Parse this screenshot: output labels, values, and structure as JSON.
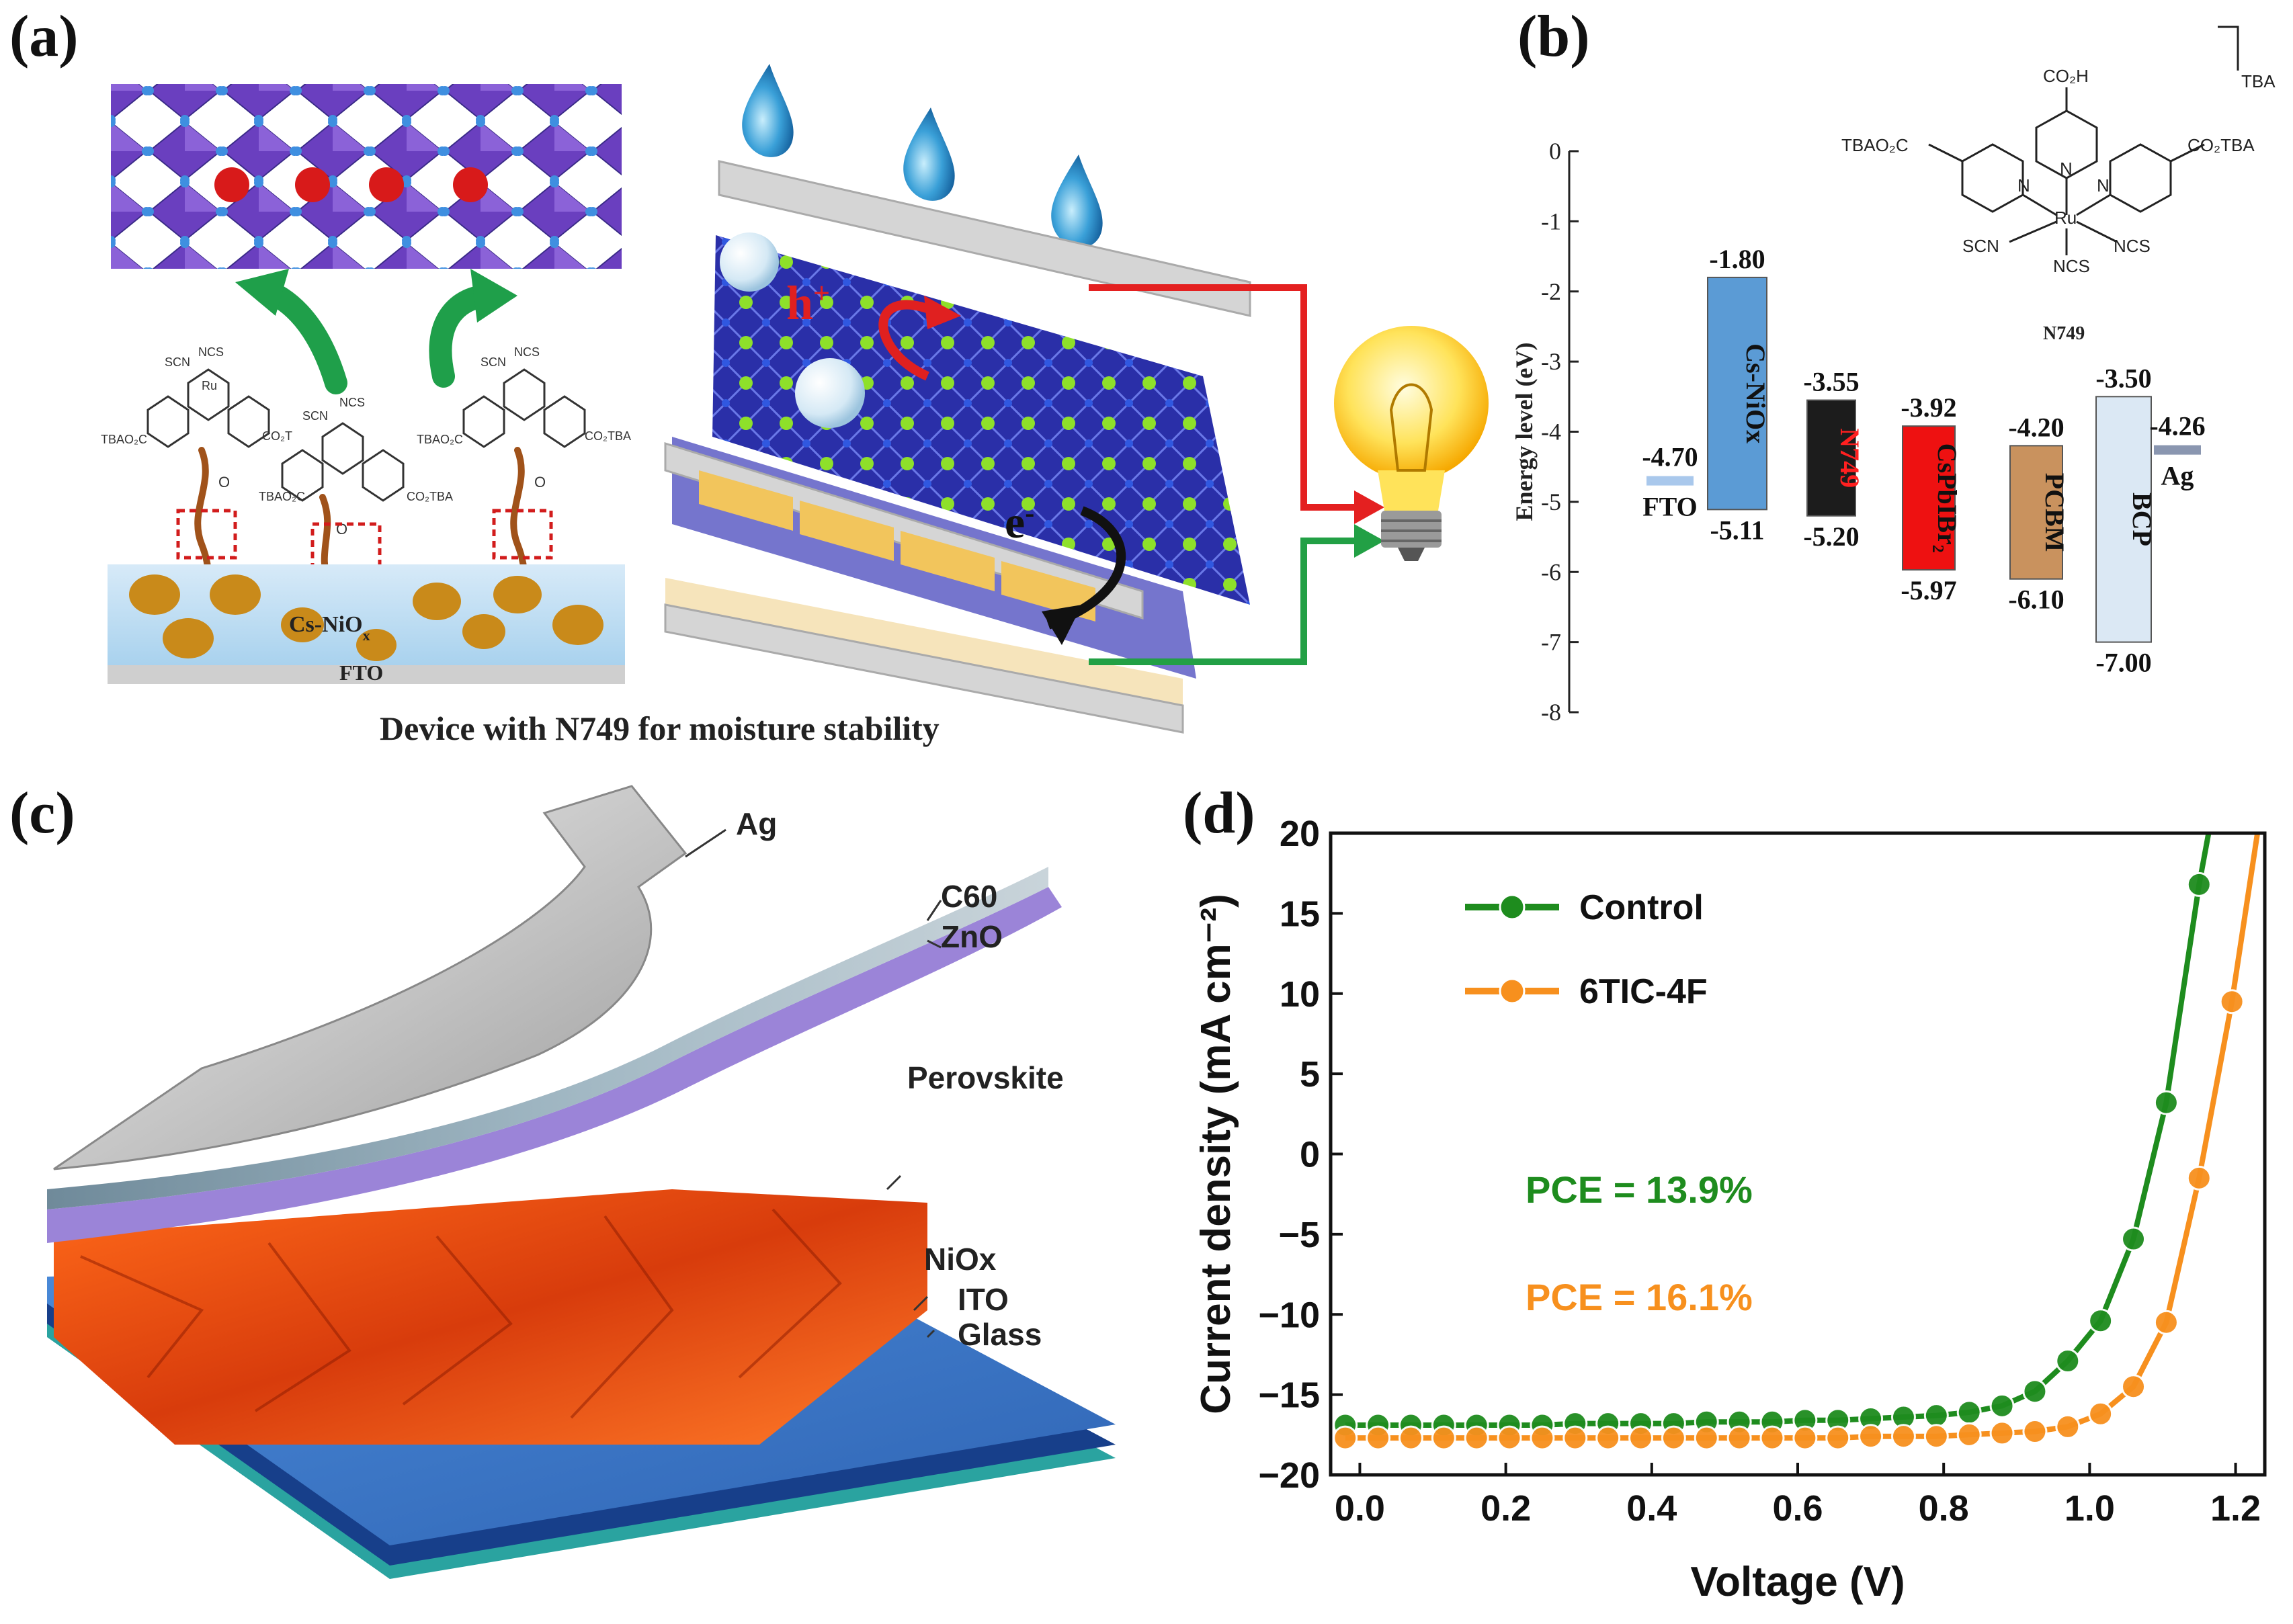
{
  "panels": {
    "a": "(a)",
    "b": "(b)",
    "c": "(c)",
    "d": "(d)"
  },
  "panel_a": {
    "caption": "Device with N749 for moisture stability",
    "substrate_label": "FTO",
    "layer_label_main": "Cs-NiO",
    "layer_label_sub": "x",
    "hole_label": "h",
    "hole_sup": "+",
    "electron_label": "e",
    "electron_sup": "-",
    "molecule_labels": {
      "ncs": "NCS",
      "scn": "SCN",
      "ru": "Ru",
      "tbao2c": "TBAO₂C",
      "co2tba": "CO₂TBA",
      "co2t": "CO₂T",
      "carbonyl": "O"
    }
  },
  "panel_b": {
    "structure": {
      "name": "N749",
      "co2h": "CO₂H",
      "tba": "TBA",
      "tbao2c": "TBAO₂C",
      "co2tba": "CO₂TBA",
      "ru": "Ru",
      "scn": "SCN",
      "ncs": "NCS",
      "n": "N"
    },
    "chart_data": {
      "type": "bar",
      "title": "",
      "ylabel": "Energy level (eV)",
      "ylim": [
        -8,
        0
      ],
      "yticks": [
        "0",
        "-1",
        "-2",
        "-3",
        "-4",
        "-5",
        "-6",
        "-7",
        "-8"
      ],
      "levels": [
        {
          "name": "FTO",
          "top": -4.7,
          "bottom": null,
          "top_label": "-4.70",
          "bottom_label": "",
          "color": "#a9c8ec",
          "label_color": "#111111"
        },
        {
          "name": "Cs-NiOx",
          "top": -1.8,
          "bottom": -5.11,
          "top_label": "-1.80",
          "bottom_label": "-5.11",
          "color": "#5b9bd5",
          "label_color": "#111111"
        },
        {
          "name": "N749",
          "top": -3.55,
          "bottom": -5.2,
          "top_label": "-3.55",
          "bottom_label": "-5.20",
          "color": "#1c1c1c",
          "label_color": "#ff2020"
        },
        {
          "name": "CsPbIBr₂",
          "top": -3.92,
          "bottom": -5.97,
          "top_label": "-3.92",
          "bottom_label": "-5.97",
          "color": "#ee1111",
          "label_color": "#111111"
        },
        {
          "name": "PCBM",
          "top": -4.2,
          "bottom": -6.1,
          "top_label": "-4.20",
          "bottom_label": "-6.10",
          "color": "#c9925e",
          "label_color": "#111111"
        },
        {
          "name": "BCP",
          "top": -3.5,
          "bottom": -7.0,
          "top_label": "-3.50",
          "bottom_label": "-7.00",
          "color": "#dbe8f4",
          "label_color": "#111111"
        },
        {
          "name": "Ag",
          "top": -4.26,
          "bottom": null,
          "top_label": "-4.26",
          "bottom_label": "",
          "color": "#8a96b0",
          "label_color": "#111111"
        }
      ]
    }
  },
  "panel_c": {
    "layers": [
      "Ag",
      "C60",
      "ZnO",
      "Perovskite",
      "NiOx",
      "ITO",
      "Glass"
    ]
  },
  "panel_d": {
    "pce_control": "PCE = 13.9%",
    "pce_6tic": "PCE = 16.1%",
    "chart_data": {
      "type": "line",
      "xlabel": "Voltage (V)",
      "ylabel": "Current density (mA cm⁻²)",
      "xlim": [
        -0.04,
        1.24
      ],
      "ylim": [
        -20,
        20
      ],
      "xticks": [
        0.0,
        0.2,
        0.4,
        0.6,
        0.8,
        1.0,
        1.2
      ],
      "xtick_labels": [
        "0.0",
        "0.2",
        "0.4",
        "0.6",
        "0.8",
        "1.0",
        "1.2"
      ],
      "yticks": [
        -20,
        -15,
        -10,
        -5,
        0,
        5,
        10,
        15,
        20
      ],
      "ytick_labels": [
        "−20",
        "−15",
        "−10",
        "−5",
        "0",
        "5",
        "10",
        "15",
        "20"
      ],
      "legend_position": "top-left",
      "series": [
        {
          "name": "Control",
          "color": "#1e8c1e",
          "x": [
            -0.02,
            0.025,
            0.07,
            0.115,
            0.16,
            0.205,
            0.25,
            0.295,
            0.34,
            0.385,
            0.43,
            0.475,
            0.52,
            0.565,
            0.61,
            0.655,
            0.7,
            0.745,
            0.79,
            0.835,
            0.88,
            0.925,
            0.97,
            1.015,
            1.06,
            1.105,
            1.15
          ],
          "y": [
            -16.9,
            -16.9,
            -16.9,
            -16.9,
            -16.9,
            -16.9,
            -16.9,
            -16.8,
            -16.8,
            -16.8,
            -16.8,
            -16.7,
            -16.7,
            -16.7,
            -16.6,
            -16.6,
            -16.5,
            -16.4,
            -16.3,
            -16.1,
            -15.7,
            -14.8,
            -12.9,
            -10.4,
            -5.3,
            3.2,
            16.8
          ]
        },
        {
          "name": "6TIC-4F",
          "color": "#f7901e",
          "x": [
            -0.02,
            0.025,
            0.07,
            0.115,
            0.16,
            0.205,
            0.25,
            0.295,
            0.34,
            0.385,
            0.43,
            0.475,
            0.52,
            0.565,
            0.61,
            0.655,
            0.7,
            0.745,
            0.79,
            0.835,
            0.88,
            0.925,
            0.97,
            1.015,
            1.06,
            1.105,
            1.15,
            1.195
          ],
          "y": [
            -17.7,
            -17.7,
            -17.7,
            -17.7,
            -17.7,
            -17.7,
            -17.7,
            -17.7,
            -17.7,
            -17.7,
            -17.7,
            -17.7,
            -17.7,
            -17.7,
            -17.7,
            -17.7,
            -17.6,
            -17.6,
            -17.6,
            -17.5,
            -17.4,
            -17.3,
            -17.0,
            -16.2,
            -14.5,
            -10.5,
            -1.5,
            9.5
          ]
        }
      ]
    }
  }
}
